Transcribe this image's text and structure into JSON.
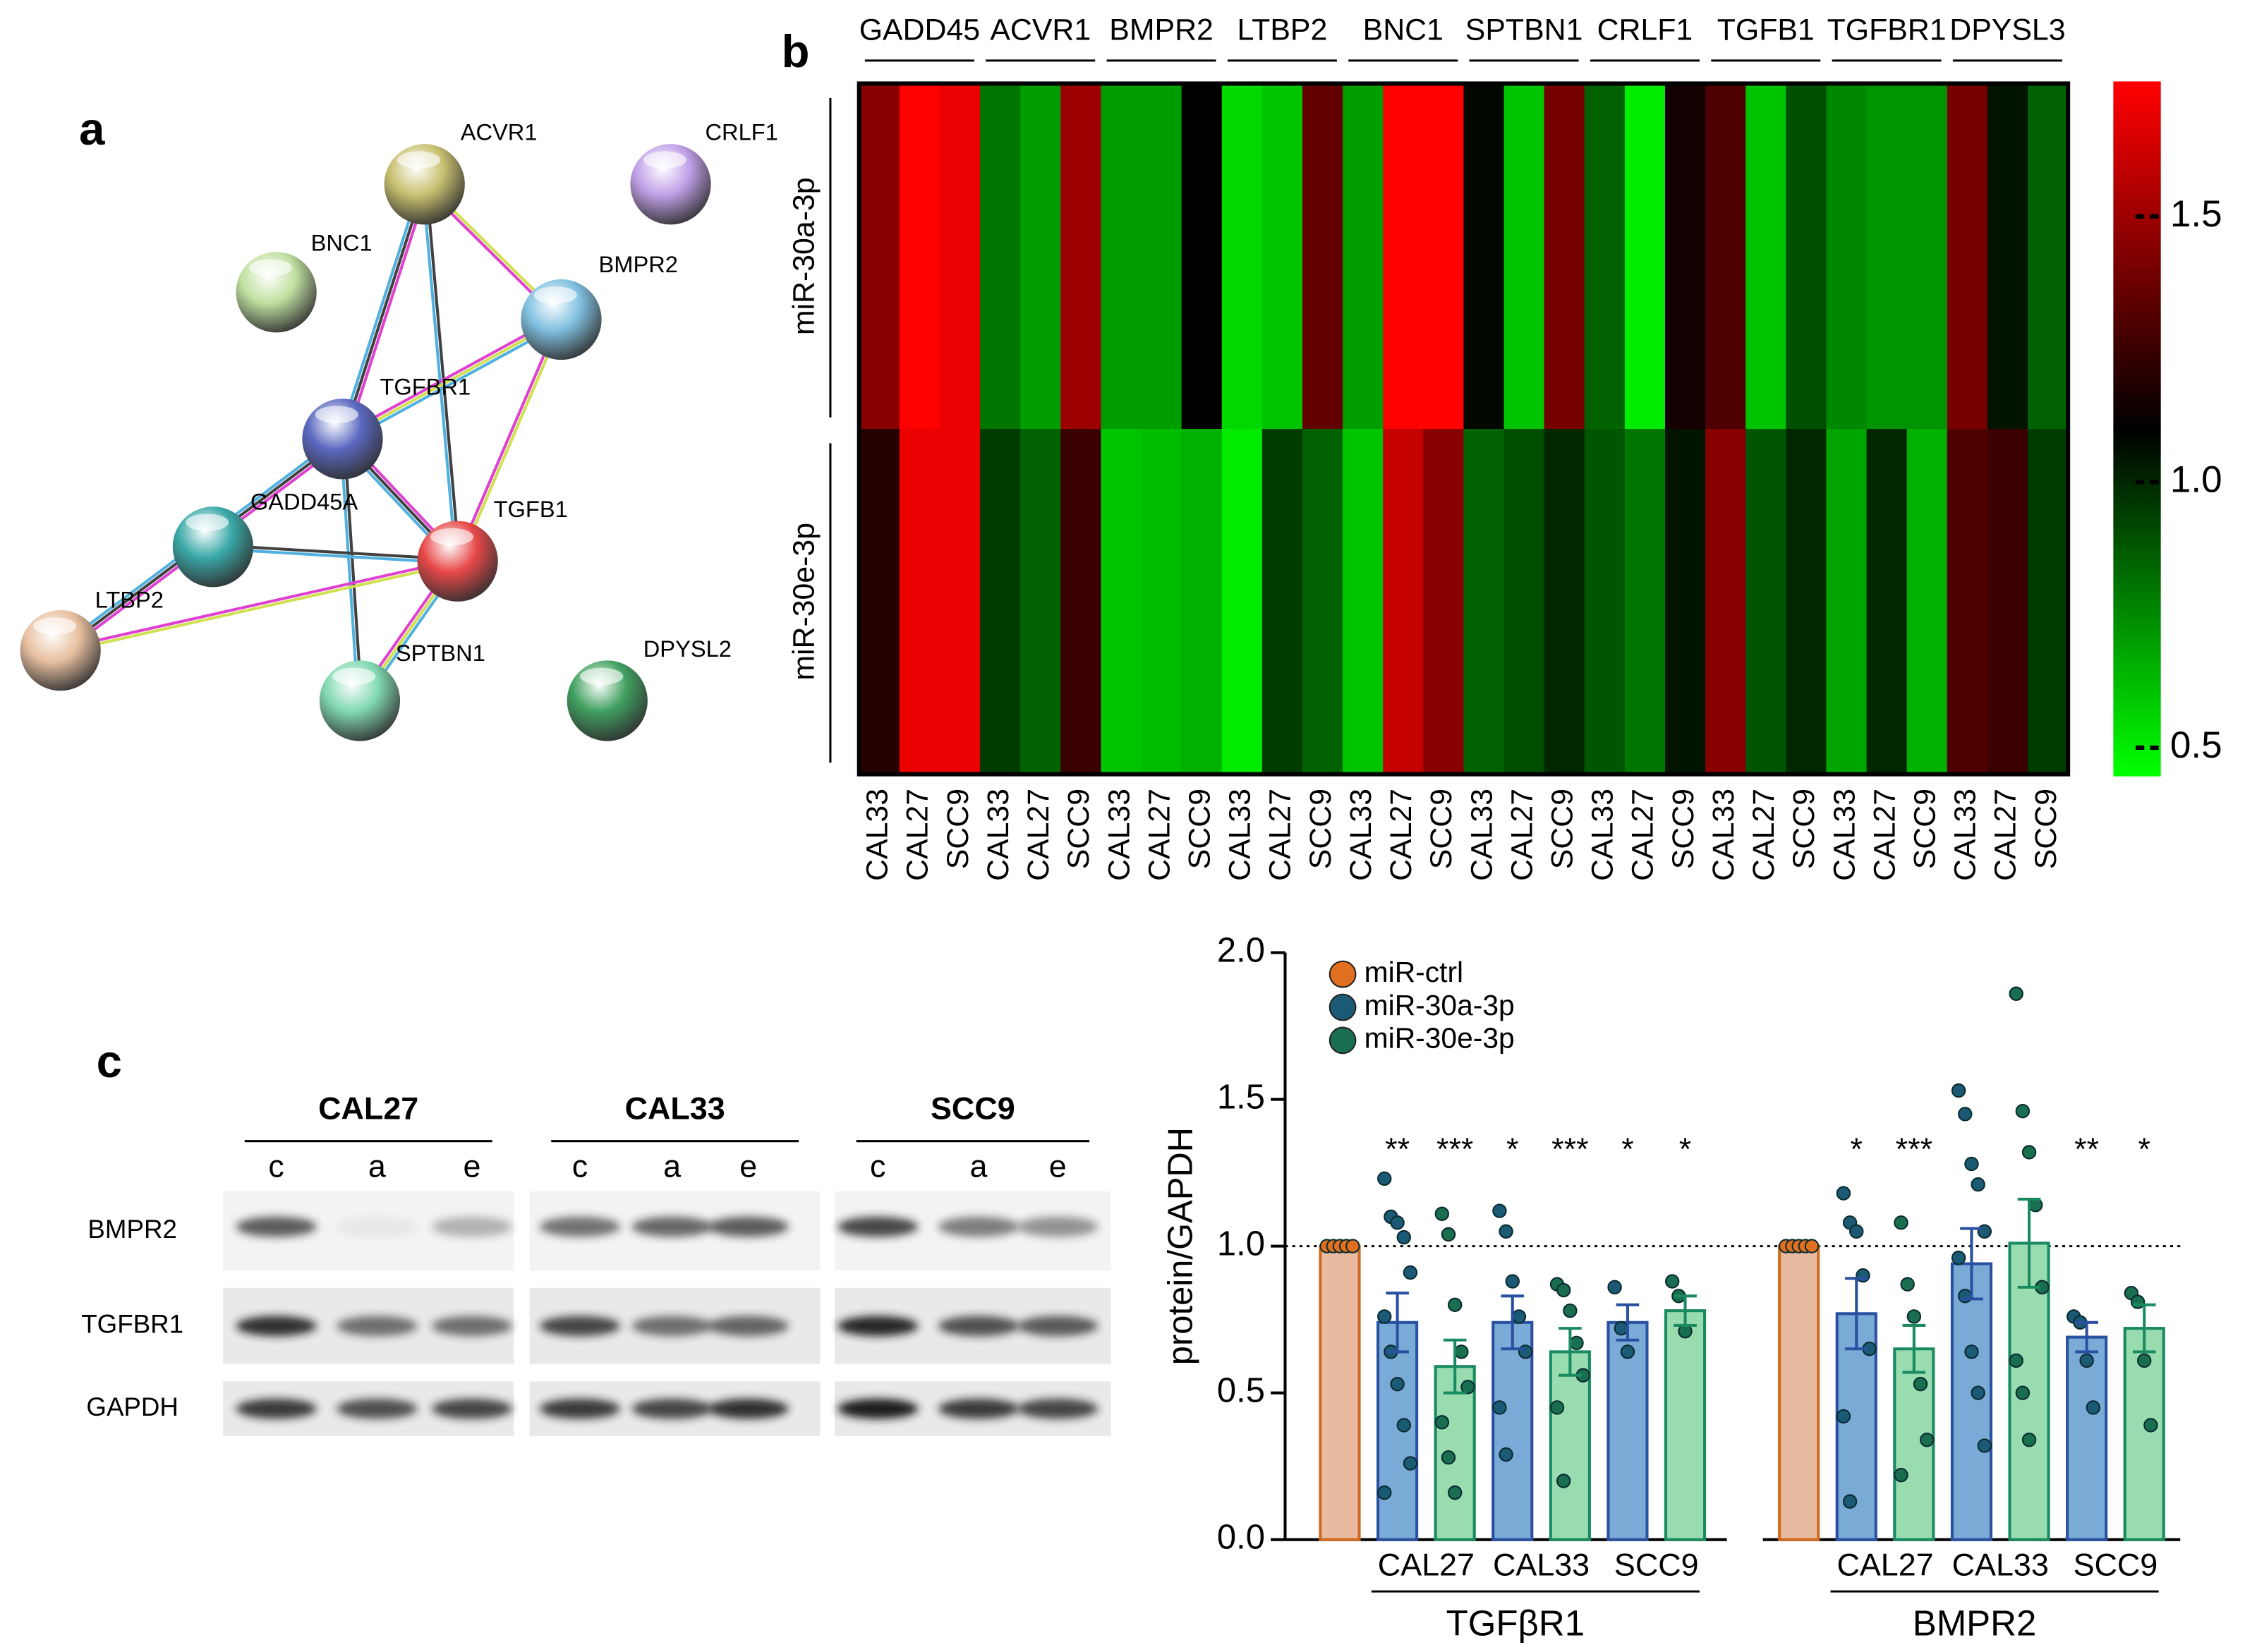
{
  "panel_labels": [
    "a",
    "b",
    "c"
  ],
  "network": {
    "nodes": [
      "ACVR1",
      "CRLF1",
      "BNC1",
      "BMPR2",
      "TGFBR1",
      "GADD45A",
      "TGFB1",
      "LTBP2",
      "SPTBN1",
      "DPYSL2"
    ]
  },
  "blot": {
    "cell_lines": [
      "CAL27",
      "CAL33",
      "SCC9"
    ],
    "lanes": [
      "c",
      "a",
      "e"
    ],
    "proteins": [
      "BMPR2",
      "TGFBR1",
      "GAPDH"
    ]
  },
  "chart_data": [
    {
      "type": "heatmap",
      "groups": [
        "GADD45",
        "ACVR1",
        "BMPR2",
        "LTBP2",
        "BNC1",
        "SPTBN1",
        "CRLF1",
        "TGFB1",
        "TGFBR1",
        "DPYSL3"
      ],
      "categories": [
        "CAL33",
        "CAL27",
        "SCC9",
        "CAL33",
        "CAL27",
        "SCC9",
        "CAL33",
        "CAL27",
        "SCC9",
        "CAL33",
        "CAL27",
        "SCC9",
        "CAL33",
        "CAL27",
        "SCC9",
        "CAL33",
        "CAL27",
        "SCC9",
        "CAL33",
        "CAL27",
        "SCC9",
        "CAL33",
        "CAL27",
        "SCC9",
        "CAL33",
        "CAL27",
        "SCC9",
        "CAL33",
        "CAL27",
        "SCC9"
      ],
      "rows": [
        "miR-30a-3p",
        "miR-30e-3p"
      ],
      "values": [
        [
          1.45,
          1.75,
          1.7,
          0.8,
          0.7,
          1.5,
          0.7,
          0.7,
          1.1,
          0.55,
          0.6,
          1.35,
          0.7,
          1.75,
          1.75,
          1.08,
          0.6,
          1.4,
          0.85,
          0.5,
          1.15,
          1.3,
          0.6,
          0.9,
          0.75,
          0.72,
          0.72,
          1.4,
          1.05,
          0.85
        ],
        [
          1.2,
          1.7,
          1.7,
          0.95,
          0.85,
          1.25,
          0.6,
          0.62,
          0.65,
          0.5,
          0.95,
          0.85,
          0.6,
          1.6,
          1.45,
          0.85,
          0.9,
          1.0,
          0.88,
          0.8,
          1.05,
          1.45,
          0.88,
          1.0,
          0.68,
          1.0,
          0.65,
          1.3,
          1.25,
          0.95
        ]
      ],
      "colormap": [
        "#00ff00",
        "#000000",
        "#ff0000"
      ],
      "zlim": [
        0.45,
        1.75
      ],
      "zticks": [
        0.5,
        {
          "value": 1,
          "label": "1.0"
        },
        1.5
      ]
    },
    {
      "type": "bar",
      "ylabel": "protein/GAPDH",
      "ylim": [
        0,
        2
      ],
      "yticks": [
        {
          "value": 0,
          "label": "0.0"
        },
        {
          "value": 0.5,
          "label": "0.5"
        },
        {
          "value": 1,
          "label": "1.0"
        },
        {
          "value": 1.5,
          "label": "1.5"
        },
        {
          "value": 2,
          "label": "2.0"
        }
      ],
      "groups": [
        "TGFβR1",
        "BMPR2"
      ],
      "cell_lines": [
        "CAL27",
        "CAL33",
        "SCC9"
      ],
      "reference_line": 1,
      "legend": "upper left",
      "series": [
        {
          "name": "miR-ctrl",
          "color": "#e8bba0",
          "edgecolor": "#d06a20",
          "marker": "#e0701f",
          "values": [
            1,
            1
          ],
          "points": [
            [
              1,
              1,
              1,
              1,
              1
            ],
            [
              1,
              1,
              1,
              1,
              1
            ]
          ]
        },
        {
          "name": "miR-30a-3p",
          "color": "#7aaad6",
          "edgecolor": "#2a50a0",
          "marker": "#1b5a74",
          "values": [
            [
              0.74,
              0.74,
              0.74
            ],
            [
              0.77,
              0.94,
              0.69
            ]
          ],
          "errors": [
            [
              0.1,
              0.09,
              0.06
            ],
            [
              0.12,
              0.12,
              0.05
            ]
          ],
          "annotations": [
            [
              "**",
              "*",
              "*"
            ],
            [
              "*",
              null,
              "**"
            ]
          ],
          "points": [
            [
              [
                1.23,
                1.1,
                1.08,
                1.03,
                0.91,
                0.76,
                0.64,
                0.53,
                0.39,
                0.26,
                0.16
              ],
              [
                1.12,
                1.05,
                0.88,
                0.76,
                0.64,
                0.45,
                0.29
              ],
              [
                0.86,
                0.72,
                0.64
              ]
            ],
            [
              [
                1.18,
                1.08,
                1.05,
                0.9,
                0.65,
                0.42,
                0.13
              ],
              [
                1.53,
                1.45,
                1.28,
                1.21,
                1.05,
                0.96,
                0.83,
                0.64,
                0.5,
                0.32
              ],
              [
                0.76,
                0.74,
                0.61,
                0.45
              ]
            ]
          ]
        },
        {
          "name": "miR-30e-3p",
          "color": "#98dcb0",
          "edgecolor": "#1a8a60",
          "marker": "#1a6e50",
          "values": [
            [
              0.59,
              0.64,
              0.78
            ],
            [
              0.65,
              1.01,
              0.72
            ]
          ],
          "errors": [
            [
              0.09,
              0.08,
              0.05
            ],
            [
              0.08,
              0.15,
              0.08
            ]
          ],
          "annotations": [
            [
              "***",
              "***",
              "*"
            ],
            [
              "***",
              null,
              "*"
            ]
          ],
          "points": [
            [
              [
                1.11,
                1.04,
                0.8,
                0.64,
                0.52,
                0.4,
                0.28,
                0.16
              ],
              [
                0.87,
                0.85,
                0.78,
                0.67,
                0.56,
                0.45,
                0.2
              ],
              [
                0.88,
                0.83,
                0.71
              ]
            ],
            [
              [
                1.08,
                0.87,
                0.76,
                0.53,
                0.34,
                0.22
              ],
              [
                1.86,
                1.46,
                1.32,
                1.14,
                0.86,
                0.61,
                0.5,
                0.34
              ],
              [
                0.84,
                0.81,
                0.61,
                0.39
              ]
            ]
          ]
        }
      ]
    }
  ]
}
